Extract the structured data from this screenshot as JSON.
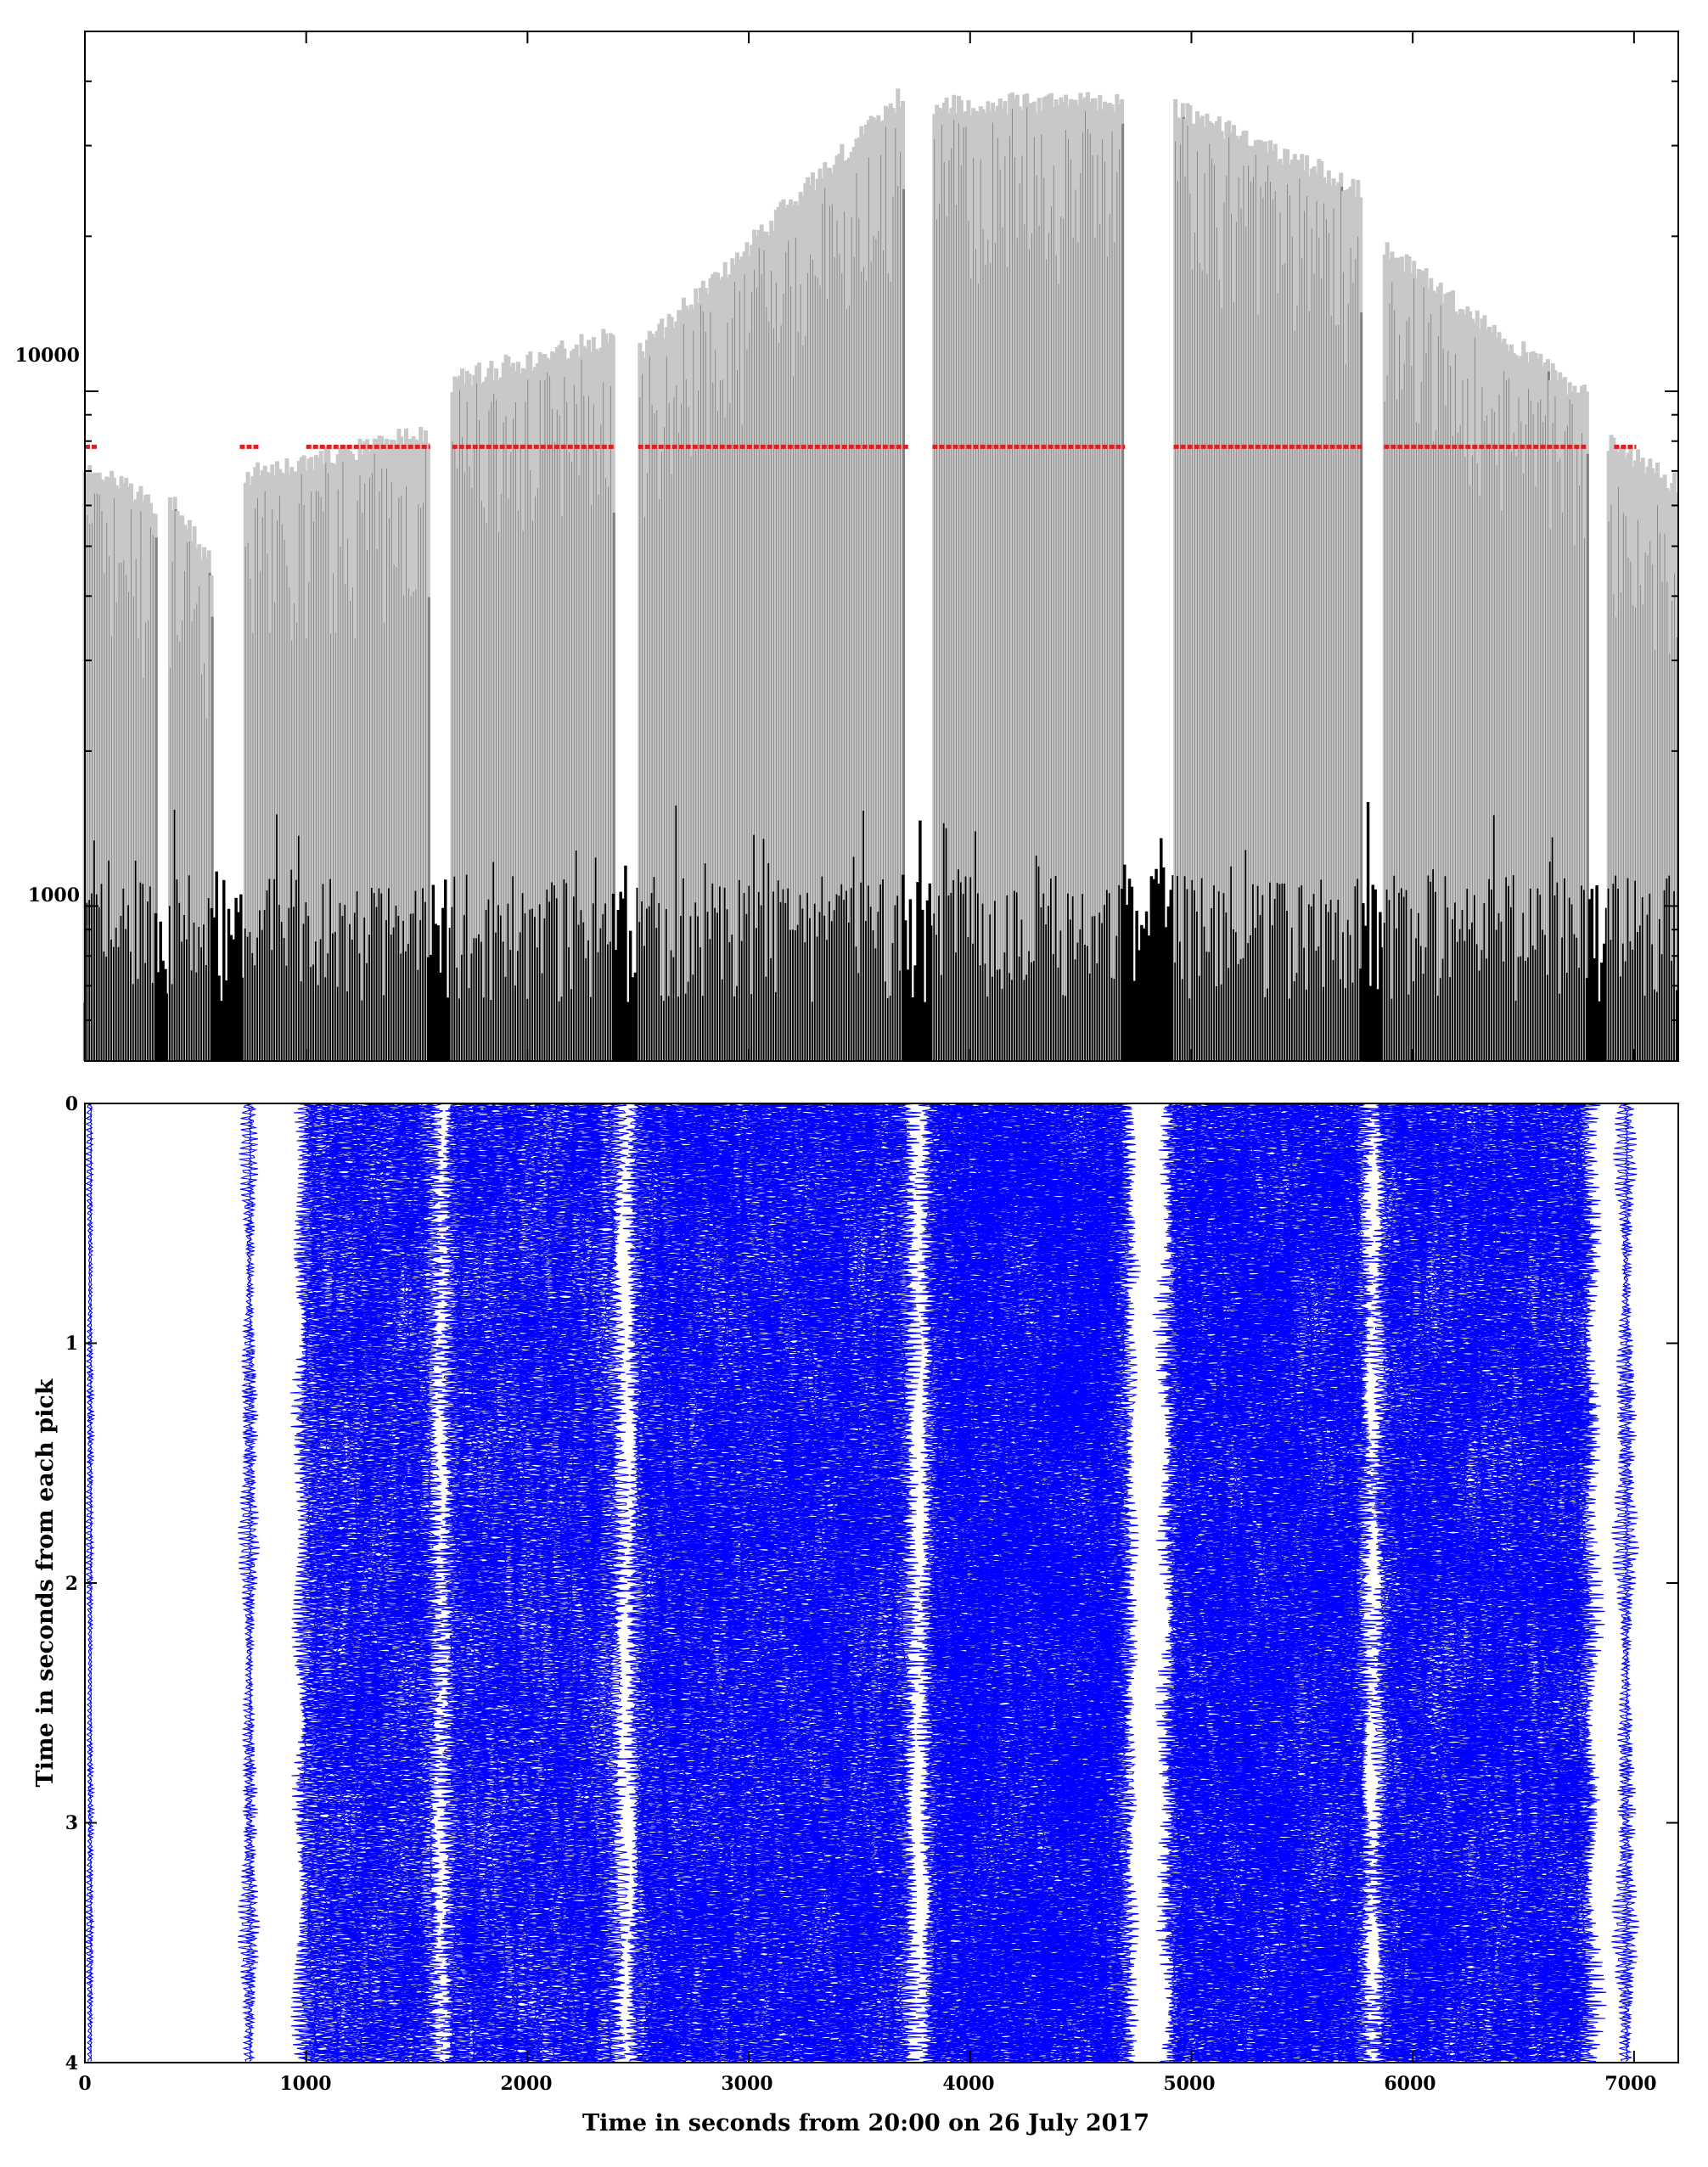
{
  "figure": {
    "background": "#ffffff"
  },
  "chart_data": [
    {
      "type": "bar",
      "title": "",
      "xlabel": "",
      "ylabel": "",
      "x_range": [
        0,
        7200
      ],
      "y_scale": "log",
      "ylim": [
        500,
        50000
      ],
      "y_ticks": [
        1000,
        10000
      ],
      "y_tick_labels": [
        "1000",
        "10000"
      ],
      "x_tick_labels_shown": false,
      "grid": false,
      "colors": {
        "peak": "#c8c8c8",
        "mid": "#808080",
        "base": "#000000",
        "pick": "#e02020"
      },
      "segments": [
        {
          "start": 0,
          "end": 320,
          "peak_start": 7500,
          "peak_end": 6400
        },
        {
          "start": 380,
          "end": 580,
          "peak_start": 6600,
          "peak_end": 4800
        },
        {
          "start": 720,
          "end": 1560,
          "peak_start": 7200,
          "peak_end": 8800
        },
        {
          "start": 1660,
          "end": 2390,
          "peak_start": 11000,
          "peak_end": 13500
        },
        {
          "start": 2500,
          "end": 3700,
          "peak_start": 12500,
          "peak_end": 40000
        },
        {
          "start": 3830,
          "end": 4690,
          "peak_start": 38000,
          "peak_end": 38500
        },
        {
          "start": 4920,
          "end": 5770,
          "peak_start": 38000,
          "peak_end": 26000
        },
        {
          "start": 5870,
          "end": 6790,
          "peak_start": 20000,
          "peak_end": 10200
        },
        {
          "start": 6880,
          "end": 7200,
          "peak_start": 8400,
          "peak_end": 6900
        }
      ],
      "pick_level": 7800,
      "pick_ranges": [
        [
          0,
          60
        ],
        [
          700,
          790
        ],
        [
          1000,
          1560
        ],
        [
          1660,
          2390
        ],
        [
          2500,
          3720
        ],
        [
          3830,
          4700
        ],
        [
          4920,
          5770
        ],
        [
          5870,
          6790
        ],
        [
          6910,
          7010
        ]
      ]
    },
    {
      "type": "line",
      "title": "",
      "xlabel": "Time in seconds from 20:00 on 26 July 2017",
      "ylabel": "Time in seconds from each pick",
      "xlim": [
        0,
        7200
      ],
      "ylim": [
        4,
        0
      ],
      "x_ticks": [
        0,
        1000,
        2000,
        3000,
        4000,
        5000,
        6000,
        7000
      ],
      "x_tick_labels": [
        "0",
        "1000",
        "2000",
        "3000",
        "4000",
        "5000",
        "6000",
        "7000"
      ],
      "y_ticks": [
        0,
        1,
        2,
        3,
        4
      ],
      "y_tick_labels": [
        "0",
        "1",
        "2",
        "3",
        "4"
      ],
      "grid": false,
      "series_color": "#0000ff",
      "traces": [
        {
          "center": 20,
          "width": 30
        },
        {
          "center": 740,
          "width": 80
        },
        {
          "start": 1000,
          "end": 1560,
          "spacing": 14
        },
        {
          "start": 1660,
          "end": 2390,
          "spacing": 14
        },
        {
          "start": 2500,
          "end": 3700,
          "spacing": 12
        },
        {
          "start": 3830,
          "end": 4690,
          "spacing": 10
        },
        {
          "start": 4920,
          "end": 5770,
          "spacing": 11
        },
        {
          "start": 5870,
          "end": 6790,
          "spacing": 12
        },
        {
          "center": 6960,
          "width": 100
        }
      ]
    }
  ]
}
